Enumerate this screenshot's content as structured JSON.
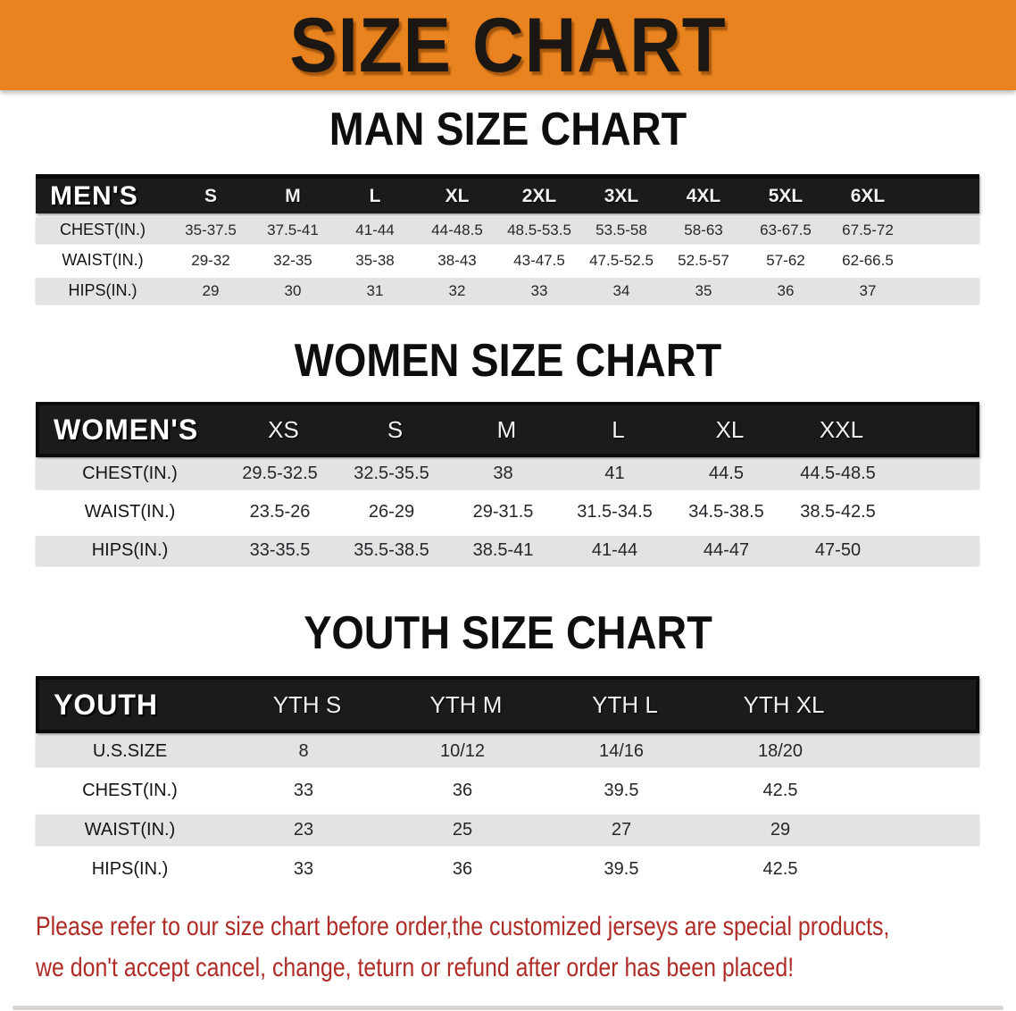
{
  "banner": {
    "title": "SIZE CHART",
    "bg_color": "#E8831F"
  },
  "colors": {
    "banner_bg": "#E8831F",
    "table_header_bg": "#1c1b19",
    "row_stripe": "#E4E3E4",
    "disclaimer_text": "#AF2B26"
  },
  "sections": [
    {
      "title": "MAN SIZE CHART",
      "table": {
        "label": "MEN'S",
        "sizes": [
          "S",
          "M",
          "L",
          "XL",
          "2XL",
          "3XL",
          "4XL",
          "5XL",
          "6XL"
        ],
        "rows": [
          {
            "label": "CHEST(IN.)",
            "values": [
              "35-37.5",
              "37.5-41",
              "41-44",
              "44-48.5",
              "48.5-53.5",
              "53.5-58",
              "58-63",
              "63-67.5",
              "67.5-72"
            ]
          },
          {
            "label": "WAIST(IN.)",
            "values": [
              "29-32",
              "32-35",
              "35-38",
              "38-43",
              "43-47.5",
              "47.5-52.5",
              "52.5-57",
              "57-62",
              "62-66.5"
            ]
          },
          {
            "label": "HIPS(IN.)",
            "values": [
              "29",
              "30",
              "31",
              "32",
              "33",
              "34",
              "35",
              "36",
              "37"
            ]
          }
        ]
      }
    },
    {
      "title": "WOMEN SIZE CHART",
      "table": {
        "label": "WOMEN'S",
        "sizes": [
          "XS",
          "S",
          "M",
          "L",
          "XL",
          "XXL"
        ],
        "rows": [
          {
            "label": "CHEST(IN.)",
            "values": [
              "29.5-32.5",
              "32.5-35.5",
              "38",
              "41",
              "44.5",
              "44.5-48.5"
            ]
          },
          {
            "label": "WAIST(IN.)",
            "values": [
              "23.5-26",
              "26-29",
              "29-31.5",
              "31.5-34.5",
              "34.5-38.5",
              "38.5-42.5"
            ]
          },
          {
            "label": "HIPS(IN.)",
            "values": [
              "33-35.5",
              "35.5-38.5",
              "38.5-41",
              "41-44",
              "44-47",
              "47-50"
            ]
          }
        ]
      }
    },
    {
      "title": "YOUTH SIZE CHART",
      "table": {
        "label": "YOUTH",
        "sizes": [
          "YTH S",
          "YTH M",
          "YTH L",
          "YTH XL"
        ],
        "rows": [
          {
            "label": "U.S.SIZE",
            "values": [
              "8",
              "10/12",
              "14/16",
              "18/20"
            ]
          },
          {
            "label": "CHEST(IN.)",
            "values": [
              "33",
              "36",
              "39.5",
              "42.5"
            ]
          },
          {
            "label": "WAIST(IN.)",
            "values": [
              "23",
              "25",
              "27",
              "29"
            ]
          },
          {
            "label": "HIPS(IN.)",
            "values": [
              "33",
              "36",
              "39.5",
              "42.5"
            ]
          }
        ]
      }
    }
  ],
  "footer": {
    "line1": "Please refer to our size chart before order,the customized jerseys are special products,",
    "line2": "we don't accept cancel, change, teturn or refund after order has been placed!"
  }
}
